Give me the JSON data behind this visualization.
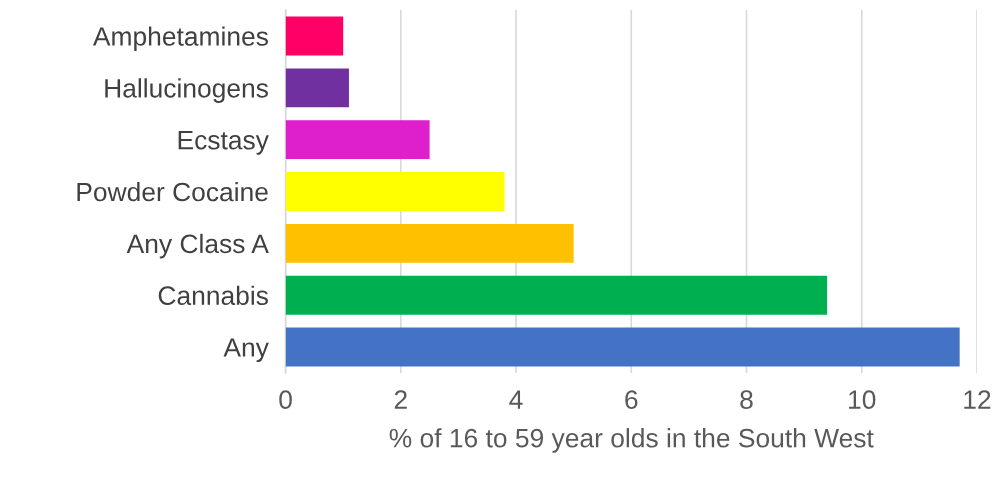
{
  "chart_data": {
    "type": "bar",
    "orientation": "horizontal",
    "xlabel": "% of 16 to 59 year olds in the South West",
    "categories": [
      "Amphetamines",
      "Hallucinogens",
      "Ecstasy",
      "Powder Cocaine",
      "Any Class A",
      "Cannabis",
      "Any"
    ],
    "values": [
      1.0,
      1.1,
      2.5,
      3.8,
      5.0,
      9.4,
      11.7
    ],
    "colors": [
      "#ff0066",
      "#7030a0",
      "#dd1fcc",
      "#ffff00",
      "#ffc000",
      "#00b050",
      "#4472c4"
    ],
    "xlim": [
      0,
      12
    ],
    "xticks": [
      0,
      2,
      4,
      6,
      8,
      10,
      12
    ],
    "grid": "x",
    "legend": false
  }
}
